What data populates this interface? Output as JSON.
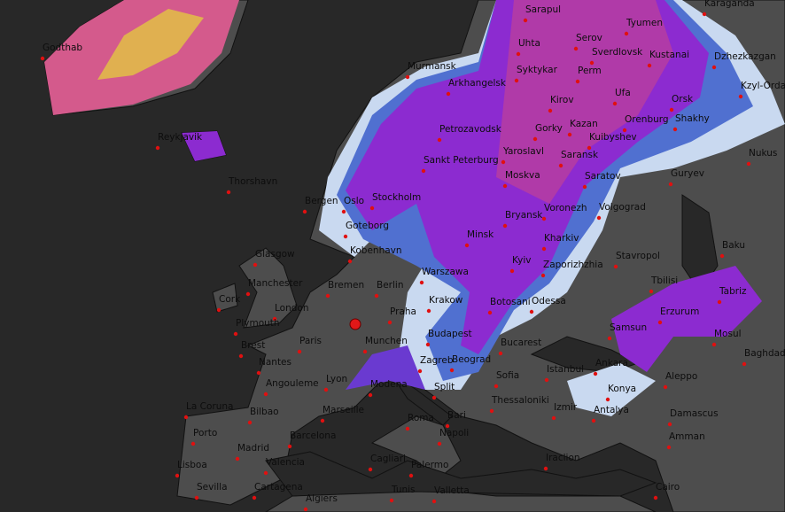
{
  "cities": [
    "Godthab",
    "Reykjavik",
    "Thorshavn",
    "Bergen",
    "Oslo",
    "Stockholm",
    "Goteborg",
    "Glasgow",
    "Kobenhavn",
    "Manchester",
    "Cork",
    "London",
    "Plymouth",
    "Brest",
    "Paris",
    "Nantes",
    "Angouleme",
    "Lyon",
    "Bremen",
    "Berlin",
    "Praha",
    "Munchen",
    "Krakow",
    "Warszawa",
    "Budapest",
    "Bucarest",
    "Odessa",
    "Botosani",
    "Kyiv",
    "Zaporizhzhia",
    "Kharkiv",
    "Minsk",
    "Sankt Peterburg",
    "Murmansk",
    "Arkhangelsk",
    "Petrozavodsk",
    "Yaroslavl",
    "Moskva",
    "Bryansk",
    "Voronezh",
    "Gorky",
    "Kazan",
    "Kirov",
    "Syktykar",
    "Uhta",
    "Sarapul",
    "Serov",
    "Perm",
    "Sverdlovsk",
    "Tyumen",
    "Kustanai",
    "Ufa",
    "Orenburg",
    "Orsk",
    "Kuibyshev",
    "Saransk",
    "Saratov",
    "Volgograd",
    "Guryev",
    "Shakhy",
    "Karaganda",
    "Dzhezkazgan",
    "Kzyl-Orda",
    "Nukus",
    "Baku",
    "Stavropol",
    "Tbilisi",
    "Tabriz",
    "Erzurum",
    "Mosul",
    "Baghdad",
    "Samsun",
    "Ankara",
    "Konya",
    "Antalya",
    "Aleppo",
    "Damascus",
    "Amman",
    "Cairo",
    "Izmir",
    "Istanbul",
    "Thessaloniki",
    "Sofia",
    "Beograd",
    "Zagreb",
    "Split",
    "Bari",
    "Roma",
    "Napoli",
    "Modena",
    "Marseille",
    "Barcelona",
    "Bilbao",
    "La Coruna",
    "Porto",
    "Madrid",
    "Valencia",
    "Lisboa",
    "Sevilla",
    "Cartagena",
    "Algiers",
    "Cagliari",
    "Palermo",
    "Tunis",
    "Valletta",
    "Iraclion"
  ]
}
